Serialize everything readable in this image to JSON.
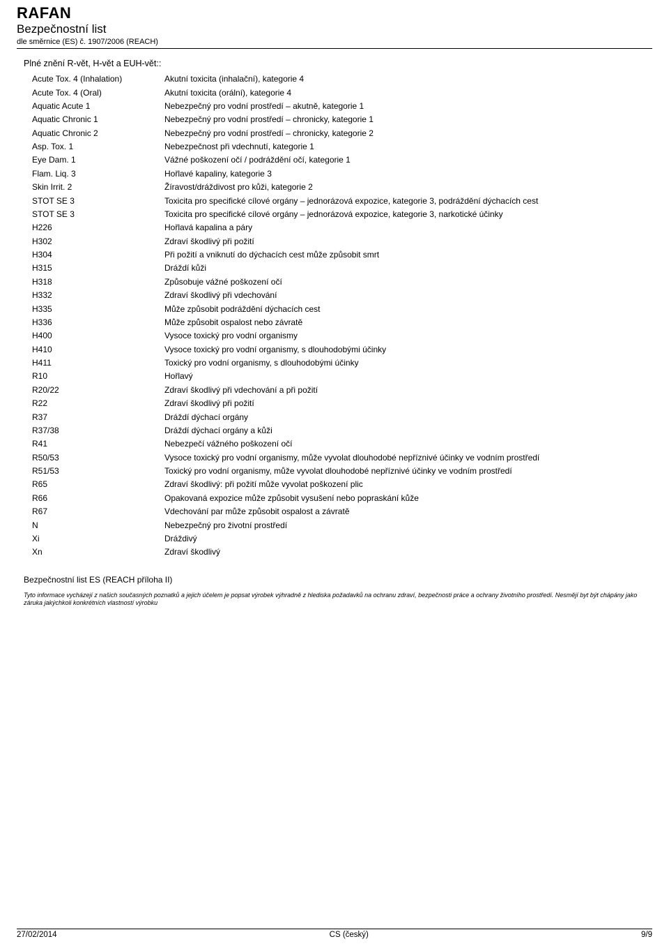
{
  "header": {
    "product": "RAFAN",
    "doc_type": "Bezpečnostní list",
    "regulation": "dle směrnice (ES) č. 1907/2006 (REACH)"
  },
  "section_title": "Plné znění R-vět, H-vět a EUH-vět::",
  "rows": [
    {
      "code": "Acute Tox. 4 (Inhalation)",
      "text": "Akutní toxicita (inhalační), kategorie 4"
    },
    {
      "code": "Acute Tox. 4 (Oral)",
      "text": "Akutní toxicita (orální), kategorie 4"
    },
    {
      "code": "Aquatic Acute 1",
      "text": "Nebezpečný pro vodní prostředí – akutně, kategorie 1"
    },
    {
      "code": "Aquatic Chronic 1",
      "text": "Nebezpečný pro vodní prostředí – chronicky, kategorie 1"
    },
    {
      "code": "Aquatic Chronic 2",
      "text": "Nebezpečný pro vodní prostředí – chronicky, kategorie 2"
    },
    {
      "code": "Asp. Tox. 1",
      "text": "Nebezpečnost při vdechnutí, kategorie 1"
    },
    {
      "code": "Eye Dam. 1",
      "text": "Vážné poškození očí / podráždění očí, kategorie 1"
    },
    {
      "code": "Flam. Liq. 3",
      "text": "Hořlavé kapaliny, kategorie 3"
    },
    {
      "code": "Skin Irrit. 2",
      "text": "Žíravost/dráždivost pro kůži, kategorie 2"
    },
    {
      "code": "STOT SE 3",
      "text": "Toxicita pro specifické cílové orgány – jednorázová expozice, kategorie 3, podráždění dýchacích cest"
    },
    {
      "code": "STOT SE 3",
      "text": "Toxicita pro specifické cílové orgány – jednorázová expozice, kategorie 3, narkotické účinky"
    },
    {
      "code": "H226",
      "text": "Hořlavá kapalina a páry"
    },
    {
      "code": "H302",
      "text": "Zdraví škodlivý při požití"
    },
    {
      "code": "H304",
      "text": "Při požití a vniknutí do dýchacích cest může způsobit smrt"
    },
    {
      "code": "H315",
      "text": "Dráždí kůži"
    },
    {
      "code": "H318",
      "text": "Způsobuje vážné poškození očí"
    },
    {
      "code": "H332",
      "text": "Zdraví škodlivý při vdechování"
    },
    {
      "code": "H335",
      "text": "Může způsobit podráždění dýchacích cest"
    },
    {
      "code": "H336",
      "text": "Může způsobit ospalost nebo závratě"
    },
    {
      "code": "H400",
      "text": "Vysoce toxický pro vodní organismy"
    },
    {
      "code": "H410",
      "text": "Vysoce toxický pro vodní organismy, s dlouhodobými účinky"
    },
    {
      "code": "H411",
      "text": "Toxický pro vodní organismy, s dlouhodobými účinky"
    },
    {
      "code": "R10",
      "text": "Hořlavý"
    },
    {
      "code": "R20/22",
      "text": "Zdraví škodlivý při vdechování a při požití"
    },
    {
      "code": "R22",
      "text": "Zdraví škodlivý při požití"
    },
    {
      "code": "R37",
      "text": "Dráždí dýchací orgány"
    },
    {
      "code": "R37/38",
      "text": "Dráždí dýchací orgány a kůži"
    },
    {
      "code": "R41",
      "text": "Nebezpečí vážného poškození očí"
    },
    {
      "code": "R50/53",
      "text": "Vysoce toxický pro vodní organismy, může vyvolat dlouhodobé nepříznivé účinky ve vodním prostředí"
    },
    {
      "code": "R51/53",
      "text": "Toxický pro vodní organismy, může vyvolat dlouhodobé nepříznivé účinky ve vodním prostředí"
    },
    {
      "code": "R65",
      "text": "Zdraví škodlivý: při požití může vyvolat poškození plic"
    },
    {
      "code": "R66",
      "text": "Opakovaná expozice může způsobit vysušení nebo popraskání kůže"
    },
    {
      "code": "R67",
      "text": "Vdechování par může způsobit ospalost a závratě"
    },
    {
      "code": "N",
      "text": "Nebezpečný pro životní prostředí"
    },
    {
      "code": "Xi",
      "text": "Dráždivý"
    },
    {
      "code": "Xn",
      "text": "Zdraví škodlivý"
    }
  ],
  "annex": "Bezpečnostní list ES (REACH příloha II)",
  "disclaimer": "Tyto informace vycházejí z našich současných poznatků a jejich účelem je popsat výrobek výhradně z hlediska požadavků na ochranu zdraví, bezpečnosti práce a ochrany životního prostředí. Nesmějí byt být chápány jako záruka jakýchkoli konkrétních vlastností výrobku",
  "footer": {
    "date": "27/02/2014",
    "lang": "CS (český)",
    "page": "9/9"
  }
}
